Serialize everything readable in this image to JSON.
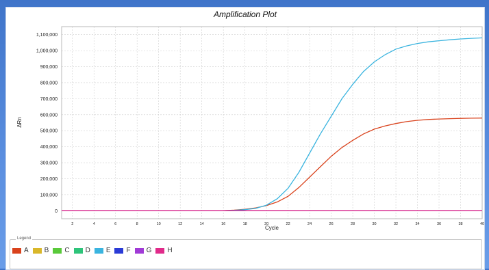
{
  "chart_data": {
    "type": "line",
    "title": "Amplification Plot",
    "xlabel": "Cycle",
    "ylabel": "ΔRn",
    "xlim": [
      1,
      40
    ],
    "ylim": [
      -50000,
      1150000
    ],
    "x_ticks": [
      2,
      4,
      6,
      8,
      10,
      12,
      14,
      16,
      18,
      20,
      22,
      24,
      26,
      28,
      30,
      32,
      34,
      36,
      38,
      40
    ],
    "y_ticks": [
      {
        "value": 0,
        "label": "0"
      },
      {
        "value": 100000,
        "label": "100,000"
      },
      {
        "value": 200000,
        "label": "200,000"
      },
      {
        "value": 300000,
        "label": "300,000"
      },
      {
        "value": 400000,
        "label": "400,000"
      },
      {
        "value": 500000,
        "label": "500,000"
      },
      {
        "value": 600000,
        "label": "600,000"
      },
      {
        "value": 700000,
        "label": "700,000"
      },
      {
        "value": 800000,
        "label": "800,000"
      },
      {
        "value": 900000,
        "label": "900,000"
      },
      {
        "value": 1000000,
        "label": "1,000,000"
      },
      {
        "value": 1100000,
        "label": "1,100,000"
      }
    ],
    "grid": true,
    "legend_title": "Legend",
    "x": [
      1,
      2,
      4,
      6,
      8,
      10,
      12,
      14,
      16,
      17,
      18,
      19,
      20,
      21,
      22,
      23,
      24,
      25,
      26,
      27,
      28,
      29,
      30,
      31,
      32,
      33,
      34,
      35,
      36,
      37,
      38,
      39,
      40
    ],
    "series": [
      {
        "name": "A",
        "color": "#d9421c",
        "values": [
          0,
          0,
          0,
          0,
          0,
          0,
          0,
          0,
          1000,
          4000,
          9000,
          18000,
          32000,
          55000,
          90000,
          145000,
          210000,
          275000,
          340000,
          395000,
          440000,
          480000,
          510000,
          530000,
          545000,
          557000,
          565000,
          570000,
          573000,
          575000,
          577000,
          578000,
          579000
        ]
      },
      {
        "name": "B",
        "color": "#d9b72a",
        "values": [
          0,
          0,
          0,
          0,
          0,
          0,
          0,
          0,
          0,
          0,
          0,
          0,
          0,
          0,
          0,
          0,
          0,
          0,
          0,
          0,
          0,
          0,
          0,
          0,
          0,
          0,
          0,
          0,
          0,
          0,
          0,
          0,
          0
        ]
      },
      {
        "name": "C",
        "color": "#59c93a",
        "values": [
          0,
          0,
          0,
          0,
          0,
          0,
          0,
          0,
          0,
          0,
          0,
          0,
          0,
          0,
          0,
          0,
          0,
          0,
          0,
          0,
          0,
          0,
          0,
          0,
          0,
          0,
          0,
          0,
          0,
          0,
          0,
          0,
          0
        ]
      },
      {
        "name": "D",
        "color": "#2ec47a",
        "values": [
          0,
          0,
          0,
          0,
          0,
          0,
          0,
          0,
          0,
          0,
          0,
          0,
          0,
          0,
          0,
          0,
          0,
          0,
          0,
          0,
          0,
          0,
          0,
          0,
          0,
          0,
          0,
          0,
          0,
          0,
          0,
          0,
          0
        ]
      },
      {
        "name": "E",
        "color": "#3ab4df",
        "values": [
          0,
          0,
          0,
          0,
          0,
          0,
          0,
          0,
          1000,
          3000,
          7000,
          15000,
          35000,
          75000,
          140000,
          240000,
          360000,
          480000,
          590000,
          700000,
          790000,
          870000,
          930000,
          975000,
          1010000,
          1030000,
          1045000,
          1055000,
          1062000,
          1068000,
          1073000,
          1077000,
          1080000
        ]
      },
      {
        "name": "F",
        "color": "#2a3bd6",
        "values": [
          0,
          0,
          0,
          0,
          0,
          0,
          0,
          0,
          0,
          0,
          0,
          0,
          0,
          0,
          0,
          0,
          0,
          0,
          0,
          0,
          0,
          0,
          0,
          0,
          0,
          0,
          0,
          0,
          0,
          0,
          0,
          0,
          0
        ]
      },
      {
        "name": "G",
        "color": "#a03ad6",
        "values": [
          0,
          0,
          0,
          0,
          0,
          0,
          0,
          0,
          0,
          0,
          0,
          0,
          0,
          0,
          0,
          0,
          0,
          0,
          0,
          0,
          0,
          0,
          0,
          0,
          0,
          0,
          0,
          0,
          0,
          0,
          0,
          0,
          0
        ]
      },
      {
        "name": "H",
        "color": "#e02a8a",
        "values": [
          0,
          0,
          0,
          0,
          0,
          0,
          0,
          0,
          0,
          0,
          0,
          0,
          0,
          0,
          0,
          0,
          0,
          0,
          0,
          0,
          0,
          0,
          0,
          0,
          0,
          0,
          0,
          0,
          0,
          0,
          0,
          0,
          0
        ]
      }
    ]
  }
}
